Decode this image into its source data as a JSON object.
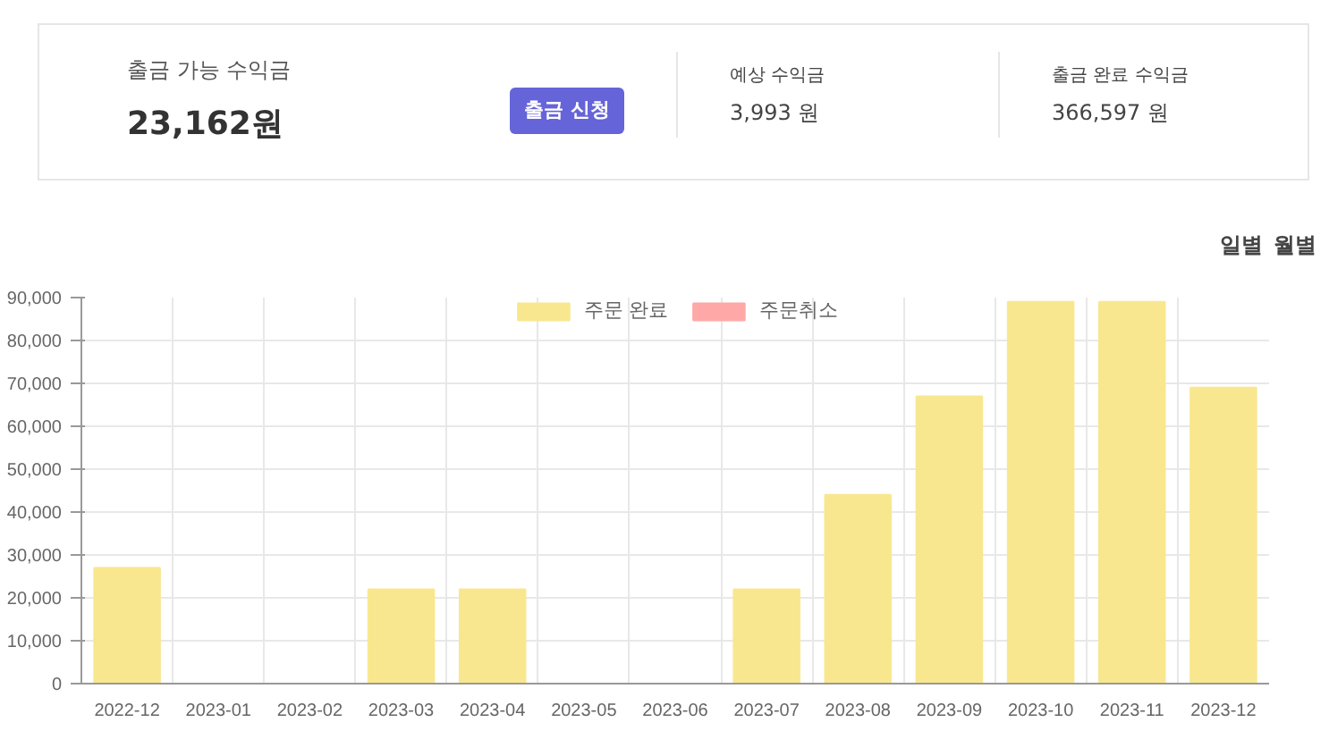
{
  "chart_data": {
    "type": "bar",
    "categories": [
      "2022-12",
      "2023-01",
      "2023-02",
      "2023-03",
      "2023-04",
      "2023-05",
      "2023-06",
      "2023-07",
      "2023-08",
      "2023-09",
      "2023-10",
      "2023-11",
      "2023-12"
    ],
    "series": [
      {
        "name": "주문 완료",
        "color": "#f9e78f",
        "values": [
          27000,
          0,
          0,
          22000,
          22000,
          0,
          0,
          22000,
          44000,
          67000,
          89000,
          89000,
          69000
        ]
      },
      {
        "name": "주문취소",
        "color": "#ffa8a8",
        "values": [
          null,
          null,
          null,
          null,
          null,
          null,
          null,
          null,
          null,
          null,
          null,
          null,
          null
        ]
      }
    ],
    "ylim": [
      0,
      90000
    ],
    "yticks": [
      {
        "value": 0,
        "label": "0"
      },
      {
        "value": 10000,
        "label": "10,000"
      },
      {
        "value": 20000,
        "label": "20,000"
      },
      {
        "value": 30000,
        "label": "30,000"
      },
      {
        "value": 40000,
        "label": "40,000"
      },
      {
        "value": 50000,
        "label": "50,000"
      },
      {
        "value": 60000,
        "label": "60,000"
      },
      {
        "value": 70000,
        "label": "70,000"
      },
      {
        "value": 80000,
        "label": "80,000"
      },
      {
        "value": 90000,
        "label": "90,000"
      }
    ],
    "grid": true,
    "legend": "top",
    "annotations": [
      "출금 가능 수익금",
      "23,162원",
      "출금 신청",
      "예상 수익금",
      "3,993 원",
      "출금 완료 수익금",
      "366,597 원",
      "일별",
      "월별"
    ]
  }
}
